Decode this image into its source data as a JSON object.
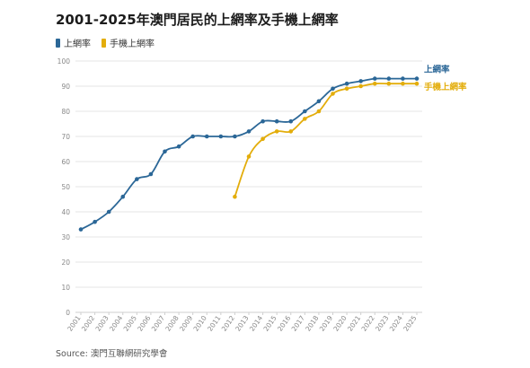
{
  "header": {
    "title": "2001-2025年澳門居民的上網率及手機上網率"
  },
  "source": "Source: 澳門互聯網研究學會",
  "colors": {
    "internet": "#2b6797",
    "mobile": "#e3ad0b"
  },
  "chart_data": {
    "type": "line",
    "title": "2001-2025年澳門居民的上網率及手機上網率",
    "xlabel": "",
    "ylabel": "",
    "ylim": [
      0,
      100
    ],
    "yticks": [
      0,
      10,
      20,
      30,
      40,
      50,
      60,
      70,
      80,
      90,
      100
    ],
    "x": [
      "2001",
      "2002",
      "2003",
      "2004",
      "2005",
      "2006",
      "2007",
      "2008",
      "2009",
      "2010",
      "2011",
      "2012",
      "2013",
      "2014",
      "2015",
      "2016",
      "2017",
      "2018",
      "2019",
      "2020",
      "2021",
      "2022",
      "2023",
      "2024",
      "2025"
    ],
    "grid": true,
    "legend_position": "top-left",
    "series": [
      {
        "name": "上網率",
        "color": "#2b6797",
        "values": [
          33,
          36,
          40,
          46,
          53,
          55,
          64,
          66,
          70,
          70,
          70,
          70,
          72,
          76,
          76,
          76,
          80,
          84,
          89,
          91,
          92,
          93,
          93,
          93,
          93
        ]
      },
      {
        "name": "手機上網率",
        "color": "#e3ad0b",
        "values": [
          null,
          null,
          null,
          null,
          null,
          null,
          null,
          null,
          null,
          null,
          null,
          46,
          62,
          69,
          72,
          72,
          77,
          80,
          87,
          89,
          90,
          91,
          91,
          91,
          91
        ]
      }
    ]
  }
}
